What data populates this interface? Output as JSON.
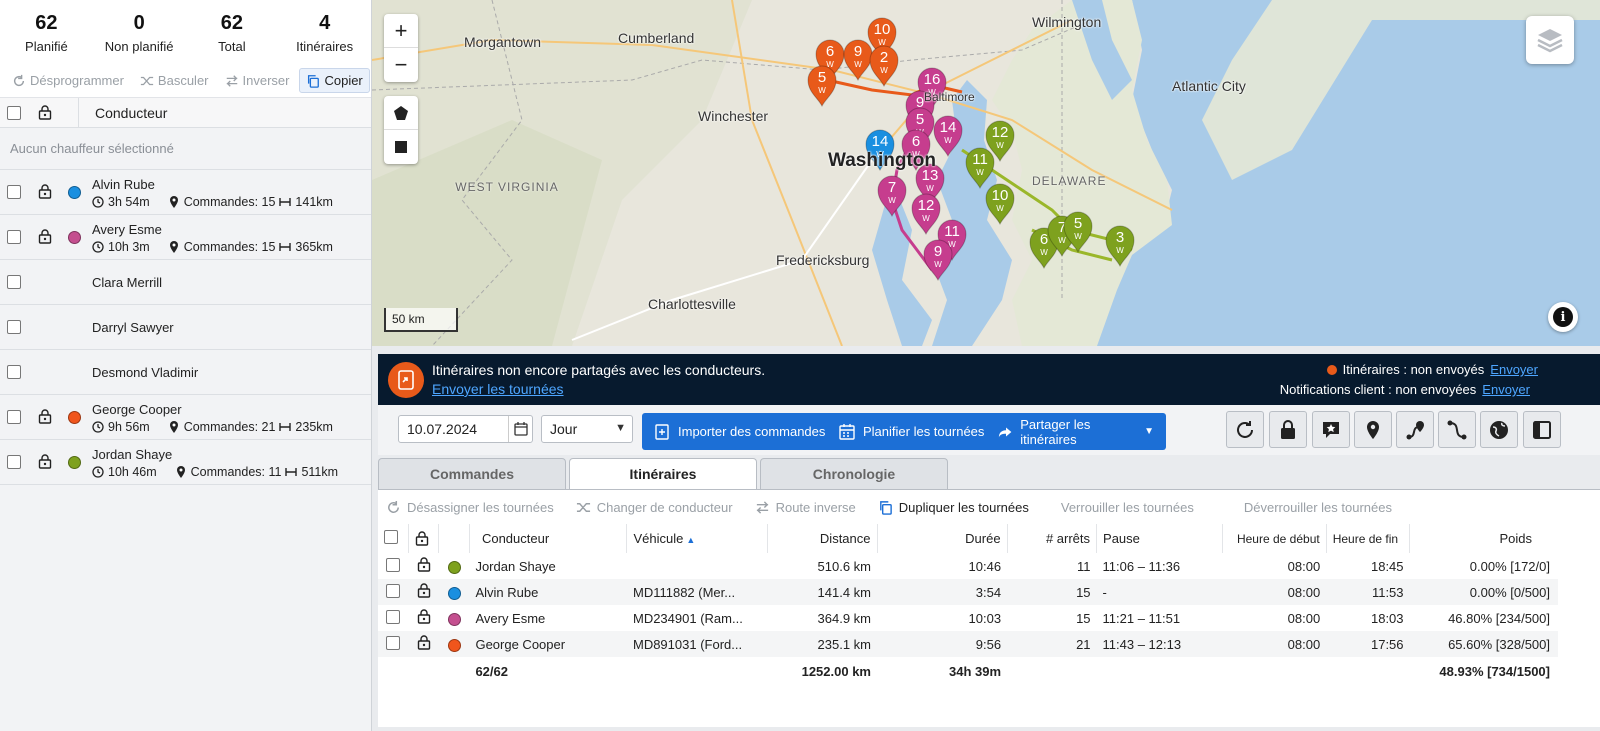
{
  "stats": [
    {
      "value": "62",
      "label": "Planifié"
    },
    {
      "value": "0",
      "label": "Non planifié"
    },
    {
      "value": "62",
      "label": "Total"
    },
    {
      "value": "4",
      "label": "Itinéraires"
    }
  ],
  "left_toolbar": {
    "unschedule": "Désprogrammer",
    "toggle": "Basculer",
    "reverse": "Inverser",
    "copy": "Copier"
  },
  "left_header": {
    "driver": "Conducteur"
  },
  "no_driver_selected": "Aucun chauffeur sélectionné",
  "drivers": [
    {
      "name": "Alvin Rube",
      "color": "#1a8fe0",
      "time": "3h 54m",
      "orders": "Commandes: 15",
      "distance": "141km",
      "has_route": true
    },
    {
      "name": "Avery Esme",
      "color": "#c44f8f",
      "time": "10h 3m",
      "orders": "Commandes: 15",
      "distance": "365km",
      "has_route": true
    },
    {
      "name": "Clara Merrill",
      "has_route": false
    },
    {
      "name": "Darryl Sawyer",
      "has_route": false
    },
    {
      "name": "Desmond Vladimir",
      "has_route": false
    },
    {
      "name": "George Cooper",
      "color": "#f0551c",
      "time": "9h 56m",
      "orders": "Commandes: 21",
      "distance": "235km",
      "has_route": true
    },
    {
      "name": "Jordan Shaye",
      "color": "#7ea11e",
      "time": "10h 46m",
      "orders": "Commandes: 11",
      "distance": "511km",
      "has_route": true
    }
  ],
  "map": {
    "zoom_in": "+",
    "zoom_out": "−",
    "scale": "50 km",
    "cities": [
      "Morgantown",
      "Cumberland",
      "Wilmington",
      "Winchester",
      "Atlantic City",
      "Washington",
      "Fredericksburg",
      "Charlottesville",
      "Baltimore"
    ],
    "states": [
      "WEST VIRGINIA",
      "DELAWARE"
    ],
    "markers": [
      {
        "label": "10",
        "color": "#e85a1a"
      },
      {
        "label": "6",
        "color": "#e85a1a"
      },
      {
        "label": "9",
        "color": "#e85a1a"
      },
      {
        "label": "2",
        "color": "#e85a1a"
      },
      {
        "label": "5",
        "color": "#e85a1a"
      },
      {
        "label": "16",
        "color": "#c63d8e"
      },
      {
        "label": "9",
        "color": "#c63d8e"
      },
      {
        "label": "5",
        "color": "#c63d8e"
      },
      {
        "label": "14",
        "color": "#c63d8e"
      },
      {
        "label": "6",
        "color": "#c63d8e"
      },
      {
        "label": "14",
        "color": "#1a8fe0"
      },
      {
        "label": "13",
        "color": "#c63d8e"
      },
      {
        "label": "7",
        "color": "#c63d8e"
      },
      {
        "label": "12",
        "color": "#c63d8e"
      },
      {
        "label": "11",
        "color": "#c63d8e"
      },
      {
        "label": "9",
        "color": "#c63d8e"
      },
      {
        "label": "12",
        "color": "#7ea11e"
      },
      {
        "label": "11",
        "color": "#7ea11e"
      },
      {
        "label": "10",
        "color": "#7ea11e"
      },
      {
        "label": "6",
        "color": "#7ea11e"
      },
      {
        "label": "7",
        "color": "#7ea11e"
      },
      {
        "label": "5",
        "color": "#7ea11e"
      },
      {
        "label": "3",
        "color": "#7ea11e"
      }
    ],
    "marker_sub": "W"
  },
  "banner": {
    "title": "Itinéraires non encore partagés avec les conducteurs.",
    "link": "Envoyer les tournées",
    "status1": "Itinéraires : non envoyés",
    "status2": "Notifications client : non envoyées",
    "send": "Envoyer"
  },
  "toolbar": {
    "date": "10.07.2024",
    "period": "Jour",
    "import": "Importer des commandes",
    "plan": "Planifier les tournées",
    "share": "Partager les itinéraires"
  },
  "tabs": [
    "Commandes",
    "Itinéraires",
    "Chronologie"
  ],
  "table_toolbar": {
    "unassign": "Désassigner les tournées",
    "change_driver": "Changer de conducteur",
    "reverse": "Route inverse",
    "duplicate": "Dupliquer les tournées",
    "lock": "Verrouiller les tournées",
    "unlock": "Déverrouiller les tournées"
  },
  "table": {
    "headers": {
      "driver": "Conducteur",
      "vehicle": "Véhicule",
      "distance": "Distance",
      "duration": "Durée",
      "stops": "# arrêts",
      "pause": "Pause",
      "start": "Heure de début",
      "end": "Heure de fin",
      "weight": "Poids"
    },
    "rows": [
      {
        "color": "#7ea11e",
        "driver": "Jordan Shaye",
        "vehicle": "",
        "distance": "510.6 km",
        "duration": "10:46",
        "stops": "11",
        "pause": "11:06 – 11:36",
        "start": "08:00",
        "end": "18:45",
        "weight": "0.00% [172/0]"
      },
      {
        "color": "#1a8fe0",
        "driver": "Alvin Rube",
        "vehicle": "MD111882 (Mer...",
        "distance": "141.4 km",
        "duration": "3:54",
        "stops": "15",
        "pause": "-",
        "start": "08:00",
        "end": "11:53",
        "weight": "0.00% [0/500]"
      },
      {
        "color": "#c44f8f",
        "driver": "Avery Esme",
        "vehicle": "MD234901 (Ram...",
        "distance": "364.9 km",
        "duration": "10:03",
        "stops": "15",
        "pause": "11:21 – 11:51",
        "start": "08:00",
        "end": "18:03",
        "weight": "46.80% [234/500]"
      },
      {
        "color": "#f0551c",
        "driver": "George Cooper",
        "vehicle": "MD891031 (Ford...",
        "distance": "235.1 km",
        "duration": "9:56",
        "stops": "21",
        "pause": "11:43 – 12:13",
        "start": "08:00",
        "end": "17:56",
        "weight": "65.60% [328/500]"
      }
    ],
    "total": {
      "count": "62/62",
      "distance": "1252.00 km",
      "duration": "34h 39m",
      "weight": "48.93% [734/1500]"
    }
  }
}
